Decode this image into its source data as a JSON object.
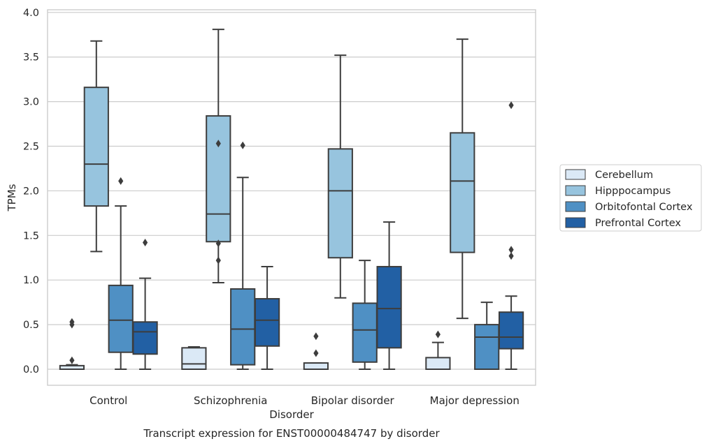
{
  "chart_data": {
    "type": "box",
    "title": "Transcript expression for ENST00000484747 by disorder",
    "xlabel": "Disorder",
    "ylabel": "TPMs",
    "ylim": [
      -0.18,
      4.03
    ],
    "yticks": [
      "0.0",
      "0.5",
      "1.0",
      "1.5",
      "2.0",
      "2.5",
      "3.0",
      "3.5",
      "4.0"
    ],
    "grid": true,
    "legend_position": "right",
    "categories": [
      "Control",
      "Schizophrenia",
      "Bipolar disorder",
      "Major depression"
    ],
    "series": [
      {
        "name": "Cerebellum",
        "color": "#dbe9f6",
        "boxes": [
          {
            "whislo": 0.0,
            "q1": 0.0,
            "med": 0.0,
            "q3": 0.04,
            "whishi": 0.05,
            "fliers": [
              0.1,
              0.5,
              0.53
            ]
          },
          {
            "whislo": 0.0,
            "q1": 0.0,
            "med": 0.06,
            "q3": 0.24,
            "whishi": 0.25,
            "fliers": []
          },
          {
            "whislo": 0.0,
            "q1": 0.0,
            "med": 0.0,
            "q3": 0.07,
            "whishi": 0.07,
            "fliers": [
              0.18,
              0.37
            ]
          },
          {
            "whislo": 0.0,
            "q1": 0.0,
            "med": 0.0,
            "q3": 0.13,
            "whishi": 0.3,
            "fliers": [
              0.39
            ]
          }
        ]
      },
      {
        "name": "Hipppocampus",
        "color": "#97c4de",
        "boxes": [
          {
            "whislo": 1.32,
            "q1": 1.83,
            "med": 2.3,
            "q3": 3.16,
            "whishi": 3.68,
            "fliers": []
          },
          {
            "whislo": 0.97,
            "q1": 1.43,
            "med": 1.74,
            "q3": 2.84,
            "whishi": 3.81,
            "fliers": [
              1.22,
              1.41,
              2.53
            ]
          },
          {
            "whislo": 0.8,
            "q1": 1.25,
            "med": 2.0,
            "q3": 2.47,
            "whishi": 3.52,
            "fliers": []
          },
          {
            "whislo": 0.57,
            "q1": 1.31,
            "med": 2.11,
            "q3": 2.65,
            "whishi": 3.7,
            "fliers": []
          }
        ]
      },
      {
        "name": "Orbitofontal Cortex",
        "color": "#4f90c4",
        "boxes": [
          {
            "whislo": 0.0,
            "q1": 0.19,
            "med": 0.55,
            "q3": 0.94,
            "whishi": 1.83,
            "fliers": [
              2.11
            ]
          },
          {
            "whislo": 0.0,
            "q1": 0.05,
            "med": 0.45,
            "q3": 0.9,
            "whishi": 2.15,
            "fliers": [
              2.51
            ]
          },
          {
            "whislo": 0.0,
            "q1": 0.08,
            "med": 0.44,
            "q3": 0.74,
            "whishi": 1.22,
            "fliers": []
          },
          {
            "whislo": 0.0,
            "q1": 0.0,
            "med": 0.36,
            "q3": 0.5,
            "whishi": 0.75,
            "fliers": []
          }
        ]
      },
      {
        "name": "Prefrontal Cortex",
        "color": "#2260a4",
        "boxes": [
          {
            "whislo": 0.0,
            "q1": 0.17,
            "med": 0.42,
            "q3": 0.53,
            "whishi": 1.02,
            "fliers": [
              1.42
            ]
          },
          {
            "whislo": 0.0,
            "q1": 0.26,
            "med": 0.55,
            "q3": 0.79,
            "whishi": 1.15,
            "fliers": []
          },
          {
            "whislo": 0.0,
            "q1": 0.24,
            "med": 0.68,
            "q3": 1.15,
            "whishi": 1.65,
            "fliers": []
          },
          {
            "whislo": 0.0,
            "q1": 0.23,
            "med": 0.36,
            "q3": 0.64,
            "whishi": 0.82,
            "fliers": [
              1.27,
              1.34,
              2.96
            ]
          }
        ]
      }
    ]
  }
}
